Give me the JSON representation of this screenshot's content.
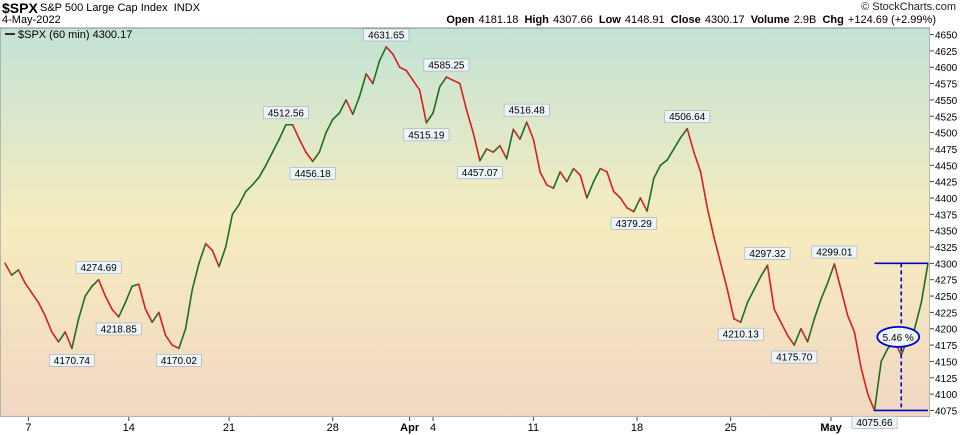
{
  "header": {
    "ticker": "$SPX",
    "name": "S&P 500 Large Cap Index",
    "exchange": "INDX",
    "date": "4-May-2022",
    "copyright": "© StockCharts.com",
    "open_label": "Open",
    "open": "4181.18",
    "high_label": "High",
    "high": "4307.66",
    "low_label": "Low",
    "low": "4148.91",
    "close_label": "Close",
    "close": "4300.17",
    "volume_label": "Volume",
    "volume": "2.9B",
    "chg_label": "Chg",
    "chg": "+124.69 (+2.99%)"
  },
  "legend": {
    "text": "$SPX (60 min) 4300.17"
  },
  "colors": {
    "up": "#1e6e1e",
    "down": "#d42020",
    "annotation": "#0000cc"
  },
  "chart_data": {
    "type": "line",
    "title": "S&P 500 Large Cap Index",
    "ylim": [
      4065,
      4660
    ],
    "yticks": [
      4075,
      4100,
      4125,
      4150,
      4175,
      4200,
      4225,
      4250,
      4275,
      4300,
      4325,
      4350,
      4375,
      4400,
      4425,
      4450,
      4475,
      4500,
      4525,
      4550,
      4575,
      4600,
      4625,
      4650
    ],
    "xlim": [
      0,
      130
    ],
    "xticks": [
      {
        "x": 3.5,
        "label": "7",
        "bold": false
      },
      {
        "x": 18.5,
        "label": "14",
        "bold": false
      },
      {
        "x": 33.5,
        "label": "21",
        "bold": false
      },
      {
        "x": 49,
        "label": "28",
        "bold": false
      },
      {
        "x": 60.5,
        "label": "Apr",
        "bold": true
      },
      {
        "x": 64,
        "label": "4",
        "bold": false
      },
      {
        "x": 79,
        "label": "11",
        "bold": false
      },
      {
        "x": 94.5,
        "label": "18",
        "bold": false
      },
      {
        "x": 108.5,
        "label": "25",
        "bold": false
      },
      {
        "x": 123.5,
        "label": "May",
        "bold": true
      }
    ],
    "series": [
      {
        "name": "$SPX (60 min)",
        "values": [
          4300,
          4282,
          4290,
          4270,
          4255,
          4240,
          4220,
          4195,
          4180,
          4195,
          4170,
          4215,
          4250,
          4265,
          4275,
          4250,
          4230,
          4218,
          4240,
          4265,
          4268,
          4230,
          4210,
          4225,
          4190,
          4175,
          4170,
          4200,
          4260,
          4300,
          4330,
          4320,
          4295,
          4325,
          4375,
          4390,
          4410,
          4420,
          4432,
          4450,
          4470,
          4490,
          4512,
          4512,
          4490,
          4470,
          4456,
          4470,
          4500,
          4520,
          4530,
          4550,
          4528,
          4555,
          4590,
          4575,
          4610,
          4631,
          4620,
          4600,
          4595,
          4580,
          4565,
          4515,
          4530,
          4570,
          4585,
          4580,
          4575,
          4535,
          4500,
          4457,
          4475,
          4470,
          4480,
          4460,
          4505,
          4490,
          4516,
          4490,
          4440,
          4420,
          4415,
          4440,
          4425,
          4445,
          4435,
          4400,
          4425,
          4445,
          4440,
          4410,
          4400,
          4385,
          4379,
          4400,
          4380,
          4430,
          4450,
          4458,
          4475,
          4492,
          4506,
          4470,
          4440,
          4385,
          4340,
          4300,
          4260,
          4215,
          4210,
          4240,
          4260,
          4280,
          4297,
          4230,
          4210,
          4190,
          4175,
          4200,
          4180,
          4215,
          4245,
          4270,
          4299,
          4260,
          4220,
          4195,
          4140,
          4100,
          4075,
          4150,
          4170,
          4180,
          4160,
          4185,
          4200,
          4240,
          4300
        ]
      }
    ],
    "annotations": [
      {
        "i": 10,
        "label": "4170.74",
        "pos": "below"
      },
      {
        "i": 14,
        "label": "4274.69",
        "pos": "above"
      },
      {
        "i": 17,
        "label": "4218.85",
        "pos": "below"
      },
      {
        "i": 26,
        "label": "4170.02",
        "pos": "below"
      },
      {
        "i": 42,
        "label": "4512.56",
        "pos": "above"
      },
      {
        "i": 46,
        "label": "4456.18",
        "pos": "below"
      },
      {
        "i": 57,
        "label": "4631.65",
        "pos": "above"
      },
      {
        "i": 63,
        "label": "4515.19",
        "pos": "below"
      },
      {
        "i": 66,
        "label": "4585.25",
        "pos": "above"
      },
      {
        "i": 71,
        "label": "4457.07",
        "pos": "below"
      },
      {
        "i": 78,
        "label": "4516.48",
        "pos": "above"
      },
      {
        "i": 94,
        "label": "4379.29",
        "pos": "below"
      },
      {
        "i": 102,
        "label": "4506.64",
        "pos": "above"
      },
      {
        "i": 110,
        "label": "4210.13",
        "pos": "below"
      },
      {
        "i": 114,
        "label": "4297.32",
        "pos": "above"
      },
      {
        "i": 118,
        "label": "4175.70",
        "pos": "below"
      },
      {
        "i": 124,
        "label": "4299.01",
        "pos": "above"
      },
      {
        "i": 130,
        "label": "4075.66",
        "pos": "below"
      }
    ],
    "range_box": {
      "low": 4075,
      "high": 4300,
      "x_start": 130,
      "x_end": 138,
      "x_mid": 134,
      "label": "5.46 %",
      "label_value": 4187.5
    }
  }
}
